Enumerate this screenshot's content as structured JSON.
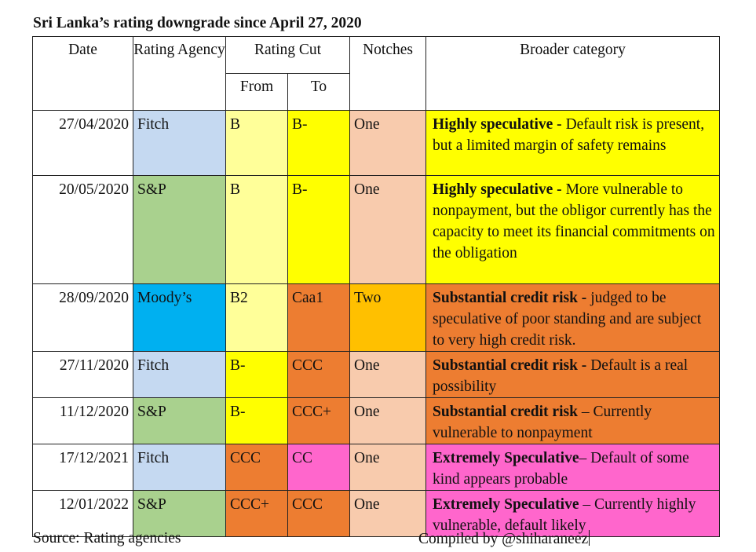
{
  "title": "Sri Lanka’s rating downgrade since April 27, 2020",
  "headers": {
    "date": "Date",
    "agency": "Rating Agency",
    "cut": "Rating Cut",
    "from": "From",
    "to": "To",
    "notches": "Notches",
    "category": "Broader category"
  },
  "colors": {
    "fitch": "#c5d9f1",
    "sp": "#a9d18e",
    "moodys": "#00b0f0",
    "light_yellow": "#ffff99",
    "yellow": "#ffff00",
    "orange": "#ed7d31",
    "peach": "#f8cbad",
    "gold": "#ffc000",
    "pink": "#ff66cc"
  },
  "rows": [
    {
      "date": "27/04/2020",
      "agency": "Fitch",
      "from": "B",
      "to": "B-",
      "notches": "One",
      "cat_bold": "Highly speculative -",
      "cat_text": " Default risk is present, but a limited margin of safety remains",
      "agency_color": "#c5d9f1",
      "from_color": "#ffff99",
      "to_color": "#ffff00",
      "notch_color": "#f8cbad",
      "cat_color": "#ffff00"
    },
    {
      "date": "20/05/2020",
      "agency": "S&P",
      "from": "B",
      "to": "B-",
      "notches": "One",
      "cat_bold": "Highly speculative -",
      "cat_text": " More vulnerable to nonpayment, but the obligor currently has the capacity to meet its financial commitments on the obligation",
      "agency_color": "#a9d18e",
      "from_color": "#ffff99",
      "to_color": "#ffff00",
      "notch_color": "#f8cbad",
      "cat_color": "#ffff00"
    },
    {
      "date": "28/09/2020",
      "agency": "Moody’s",
      "from": "B2",
      "to": "Caa1",
      "notches": "Two",
      "cat_bold": "Substantial credit risk -",
      "cat_text": " judged to be speculative of poor standing and are subject to very high credit risk.",
      "agency_color": "#00b0f0",
      "from_color": "#ffff99",
      "to_color": "#ed7d31",
      "notch_color": "#ffc000",
      "cat_color": "#ed7d31"
    },
    {
      "date": "27/11/2020",
      "agency": "Fitch",
      "from": "B-",
      "to": "CCC",
      "notches": "One",
      "cat_bold": "Substantial credit risk -",
      "cat_text": " Default is a real possibility",
      "agency_color": "#c5d9f1",
      "from_color": "#ffff00",
      "to_color": "#ed7d31",
      "notch_color": "#f8cbad",
      "cat_color": "#ed7d31"
    },
    {
      "date": "11/12/2020",
      "agency": "S&P",
      "from": "B-",
      "to": "CCC+",
      "notches": "One",
      "cat_bold": "Substantial credit risk",
      "cat_text": " – Currently vulnerable to nonpayment",
      "agency_color": "#a9d18e",
      "from_color": "#ffff00",
      "to_color": "#ed7d31",
      "notch_color": "#f8cbad",
      "cat_color": "#ed7d31"
    },
    {
      "date": "17/12/2021",
      "agency": "Fitch",
      "from": "CCC",
      "to": "CC",
      "notches": "One",
      "cat_bold": "Extremely Speculative",
      "cat_text": "– Default of some kind appears probable",
      "agency_color": "#c5d9f1",
      "from_color": "#ed7d31",
      "to_color": "#ff66cc",
      "notch_color": "#f8cbad",
      "cat_color": "#ff66cc"
    },
    {
      "date": "12/01/2022",
      "agency": "S&P",
      "from": "CCC+",
      "to": "CCC",
      "notches": "One",
      "cat_bold": "Extremely Speculative",
      "cat_text": " – Currently highly vulnerable, default likely",
      "agency_color": "#a9d18e",
      "from_color": "#ed7d31",
      "to_color": "#ed7d31",
      "notch_color": "#f8cbad",
      "cat_color": "#ff66cc"
    }
  ],
  "footer": {
    "source": "Source: Rating agencies",
    "compiled": "Compiled by @shiharaneez"
  }
}
